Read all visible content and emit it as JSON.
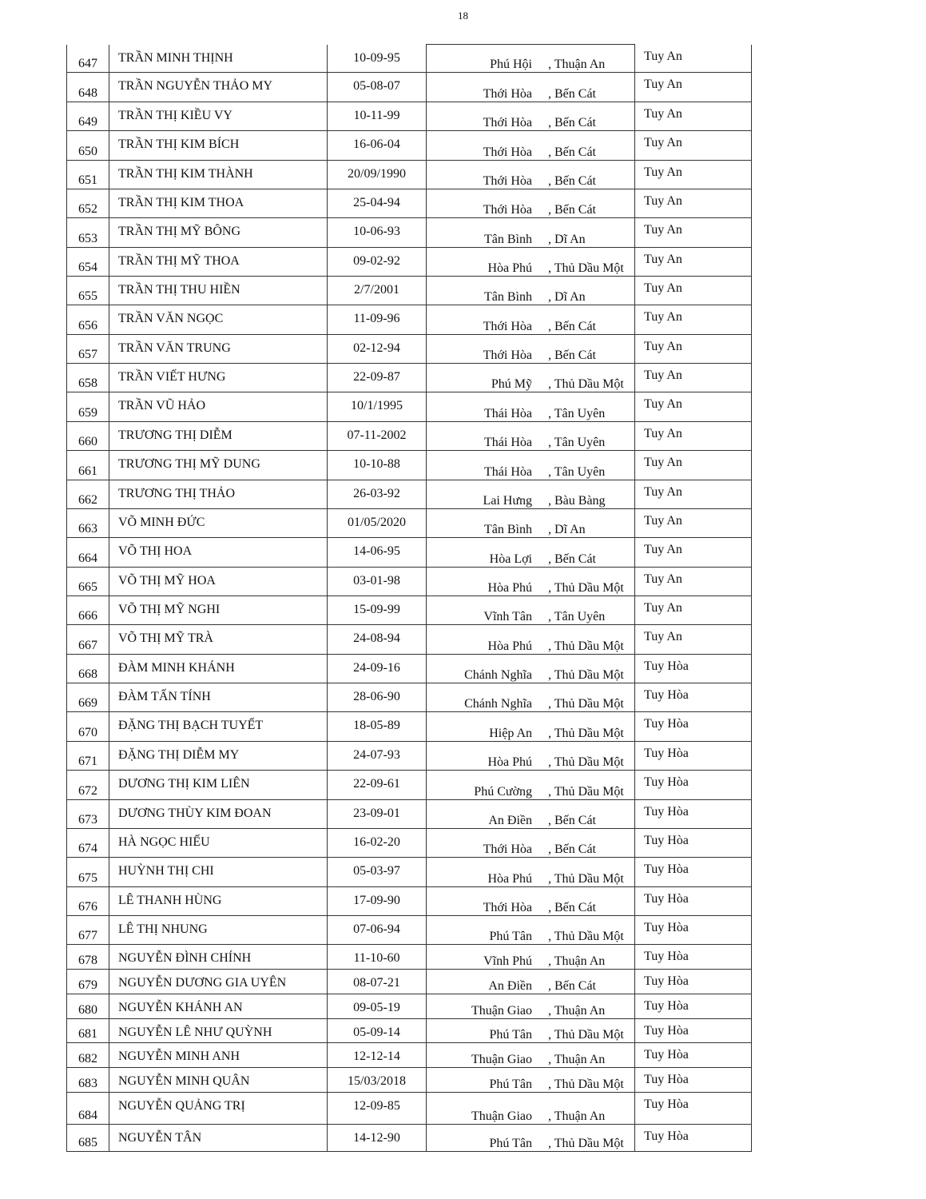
{
  "page_number": "18",
  "rows": [
    {
      "no": "647",
      "name": "TRẦN MINH THỊNH",
      "dob": "10-09-95",
      "ward": "Phú Hội",
      "district": ", Thuận An",
      "province": "Tuy An"
    },
    {
      "no": "648",
      "name": "TRẦN NGUYỄN THẢO MY",
      "dob": "05-08-07",
      "ward": "Thới Hòa",
      "district": ", Bến Cát",
      "province": "Tuy An"
    },
    {
      "no": "649",
      "name": "TRẦN THỊ KIỀU VY",
      "dob": "10-11-99",
      "ward": "Thới Hòa",
      "district": ", Bến Cát",
      "province": "Tuy An"
    },
    {
      "no": "650",
      "name": "TRẦN THỊ KIM BÍCH",
      "dob": "16-06-04",
      "ward": "Thới Hòa",
      "district": ", Bến Cát",
      "province": "Tuy An"
    },
    {
      "no": "651",
      "name": "TRẦN THỊ KIM THÀNH",
      "dob": "20/09/1990",
      "ward": "Thới Hòa",
      "district": ", Bến Cát",
      "province": "Tuy An"
    },
    {
      "no": "652",
      "name": "TRẦN THỊ KIM THOA",
      "dob": "25-04-94",
      "ward": "Thới Hòa",
      "district": ", Bến Cát",
      "province": "Tuy An"
    },
    {
      "no": "653",
      "name": "TRẦN THỊ MỸ BÔNG",
      "dob": "10-06-93",
      "ward": "Tân Bình",
      "district": ", Dĩ An",
      "province": "Tuy An"
    },
    {
      "no": "654",
      "name": "TRẦN THỊ MỸ THOA",
      "dob": "09-02-92",
      "ward": "Hòa Phú",
      "district": ", Thủ Dầu Một",
      "province": "Tuy An"
    },
    {
      "no": "655",
      "name": "TRẦN THỊ THU HIỀN",
      "dob": "2/7/2001",
      "ward": "Tân Bình",
      "district": ", Dĩ An",
      "province": "Tuy An"
    },
    {
      "no": "656",
      "name": "TRẦN VĂN NGỌC",
      "dob": "11-09-96",
      "ward": "Thới Hòa",
      "district": ", Bến Cát",
      "province": "Tuy An"
    },
    {
      "no": "657",
      "name": "TRẦN VĂN TRUNG",
      "dob": "02-12-94",
      "ward": "Thới Hòa",
      "district": ", Bến Cát",
      "province": "Tuy An"
    },
    {
      "no": "658",
      "name": "TRẦN VIẾT HƯNG",
      "dob": "22-09-87",
      "ward": "Phú Mỹ",
      "district": ", Thủ Dầu Một",
      "province": "Tuy An"
    },
    {
      "no": "659",
      "name": "TRẦN VŨ HẢO",
      "dob": "10/1/1995",
      "ward": "Thái Hòa",
      "district": ", Tân Uyên",
      "province": "Tuy An"
    },
    {
      "no": "660",
      "name": "TRƯƠNG THỊ DIỄM",
      "dob": "07-11-2002",
      "ward": "Thái Hòa",
      "district": ", Tân Uyên",
      "province": "Tuy An"
    },
    {
      "no": "661",
      "name": "TRƯƠNG THỊ MỸ DUNG",
      "dob": "10-10-88",
      "ward": "Thái Hòa",
      "district": ", Tân Uyên",
      "province": "Tuy An"
    },
    {
      "no": "662",
      "name": "TRƯƠNG THỊ THẢO",
      "dob": "26-03-92",
      "ward": "Lai Hưng",
      "district": ", Bàu Bàng",
      "province": "Tuy An"
    },
    {
      "no": "663",
      "name": "VÕ MINH ĐỨC",
      "dob": "01/05/2020",
      "ward": "Tân Bình",
      "district": ", Dĩ An",
      "province": "Tuy An"
    },
    {
      "no": "664",
      "name": "VÕ THỊ HOA",
      "dob": "14-06-95",
      "ward": "Hòa Lợi",
      "district": ", Bến Cát",
      "province": "Tuy An"
    },
    {
      "no": "665",
      "name": "VÕ THỊ MỸ HOA",
      "dob": "03-01-98",
      "ward": "Hòa Phú",
      "district": ", Thủ Dầu Một",
      "province": "Tuy An"
    },
    {
      "no": "666",
      "name": "VÕ THỊ MỸ NGHI",
      "dob": "15-09-99",
      "ward": "Vĩnh Tân",
      "district": ", Tân Uyên",
      "province": "Tuy An"
    },
    {
      "no": "667",
      "name": "VÕ THỊ MỸ TRÀ",
      "dob": "24-08-94",
      "ward": "Hòa Phú",
      "district": ", Thủ Dầu Một",
      "province": "Tuy An"
    },
    {
      "no": "668",
      "name": "ĐÀM MINH KHÁNH",
      "dob": "24-09-16",
      "ward": "Chánh Nghĩa",
      "district": ", Thủ Dầu Một",
      "province": "Tuy Hòa"
    },
    {
      "no": "669",
      "name": "ĐÀM TẤN TÍNH",
      "dob": "28-06-90",
      "ward": "Chánh Nghĩa",
      "district": ", Thủ Dầu Một",
      "province": "Tuy Hòa"
    },
    {
      "no": "670",
      "name": "ĐẶNG THỊ BẠCH TUYẾT",
      "dob": "18-05-89",
      "ward": "Hiệp An",
      "district": ", Thủ Dầu Một",
      "province": "Tuy Hòa"
    },
    {
      "no": "671",
      "name": "ĐẶNG THỊ DIỄM MY",
      "dob": "24-07-93",
      "ward": "Hòa Phú",
      "district": ", Thủ Dầu Một",
      "province": "Tuy Hòa"
    },
    {
      "no": "672",
      "name": "DƯƠNG THỊ KIM LIÊN",
      "dob": "22-09-61",
      "ward": "Phú Cường",
      "district": ", Thủ Dầu Một",
      "province": "Tuy Hòa"
    },
    {
      "no": "673",
      "name": "DƯƠNG THÙY KIM ĐOAN",
      "dob": "23-09-01",
      "ward": "An Điền",
      "district": ", Bến Cát",
      "province": "Tuy Hòa"
    },
    {
      "no": "674",
      "name": "HÀ NGỌC HIẾU",
      "dob": "16-02-20",
      "ward": "Thới Hòa",
      "district": ", Bến Cát",
      "province": "Tuy Hòa"
    },
    {
      "no": "675",
      "name": "HUỲNH THỊ CHI",
      "dob": "05-03-97",
      "ward": "Hòa Phú",
      "district": ", Thủ Dầu Một",
      "province": "Tuy Hòa"
    },
    {
      "no": "676",
      "name": "LÊ THANH HÙNG",
      "dob": "17-09-90",
      "ward": "Thới Hòa",
      "district": ", Bến Cát",
      "province": "Tuy Hòa"
    },
    {
      "no": "677",
      "name": "LÊ THỊ NHUNG",
      "dob": "07-06-94",
      "ward": "Phú Tân",
      "district": ", Thủ Dầu Một",
      "province": "Tuy Hòa"
    },
    {
      "no": "678",
      "name": "NGUYỄN ĐÌNH CHÍNH",
      "dob": "11-10-60",
      "ward": "Vĩnh Phú",
      "district": ", Thuận An",
      "province": "Tuy Hòa"
    },
    {
      "no": "679",
      "name": "NGUYỄN DƯƠNG GIA UYÊN",
      "dob": "08-07-21",
      "ward": "An Điền",
      "district": ", Bến Cát",
      "province": "Tuy Hòa"
    },
    {
      "no": "680",
      "name": "NGUYỄN KHÁNH AN",
      "dob": "09-05-19",
      "ward": "Thuận Giao",
      "district": ", Thuận An",
      "province": "Tuy Hòa"
    },
    {
      "no": "681",
      "name": "NGUYỄN LÊ NHƯ QUỲNH",
      "dob": "05-09-14",
      "ward": "Phú Tân",
      "district": ", Thủ Dầu Một",
      "province": "Tuy Hòa"
    },
    {
      "no": "682",
      "name": "NGUYỄN MINH ANH",
      "dob": "12-12-14",
      "ward": "Thuận Giao",
      "district": ", Thuận An",
      "province": "Tuy Hòa"
    },
    {
      "no": "683",
      "name": "NGUYỄN MINH QUÂN",
      "dob": "15/03/2018",
      "ward": "Phú Tân",
      "district": ", Thủ Dầu Một",
      "province": "Tuy Hòa"
    },
    {
      "no": "684",
      "name": "NGUYỄN QUẢNG TRỊ",
      "dob": "12-09-85",
      "ward": "Thuận Giao",
      "district": ", Thuận An",
      "province": "Tuy Hòa"
    },
    {
      "no": "685",
      "name": "NGUYỄN TÂN",
      "dob": "14-12-90",
      "ward": "Phú Tân",
      "district": ", Thủ Dầu Một",
      "province": "Tuy Hòa"
    }
  ]
}
